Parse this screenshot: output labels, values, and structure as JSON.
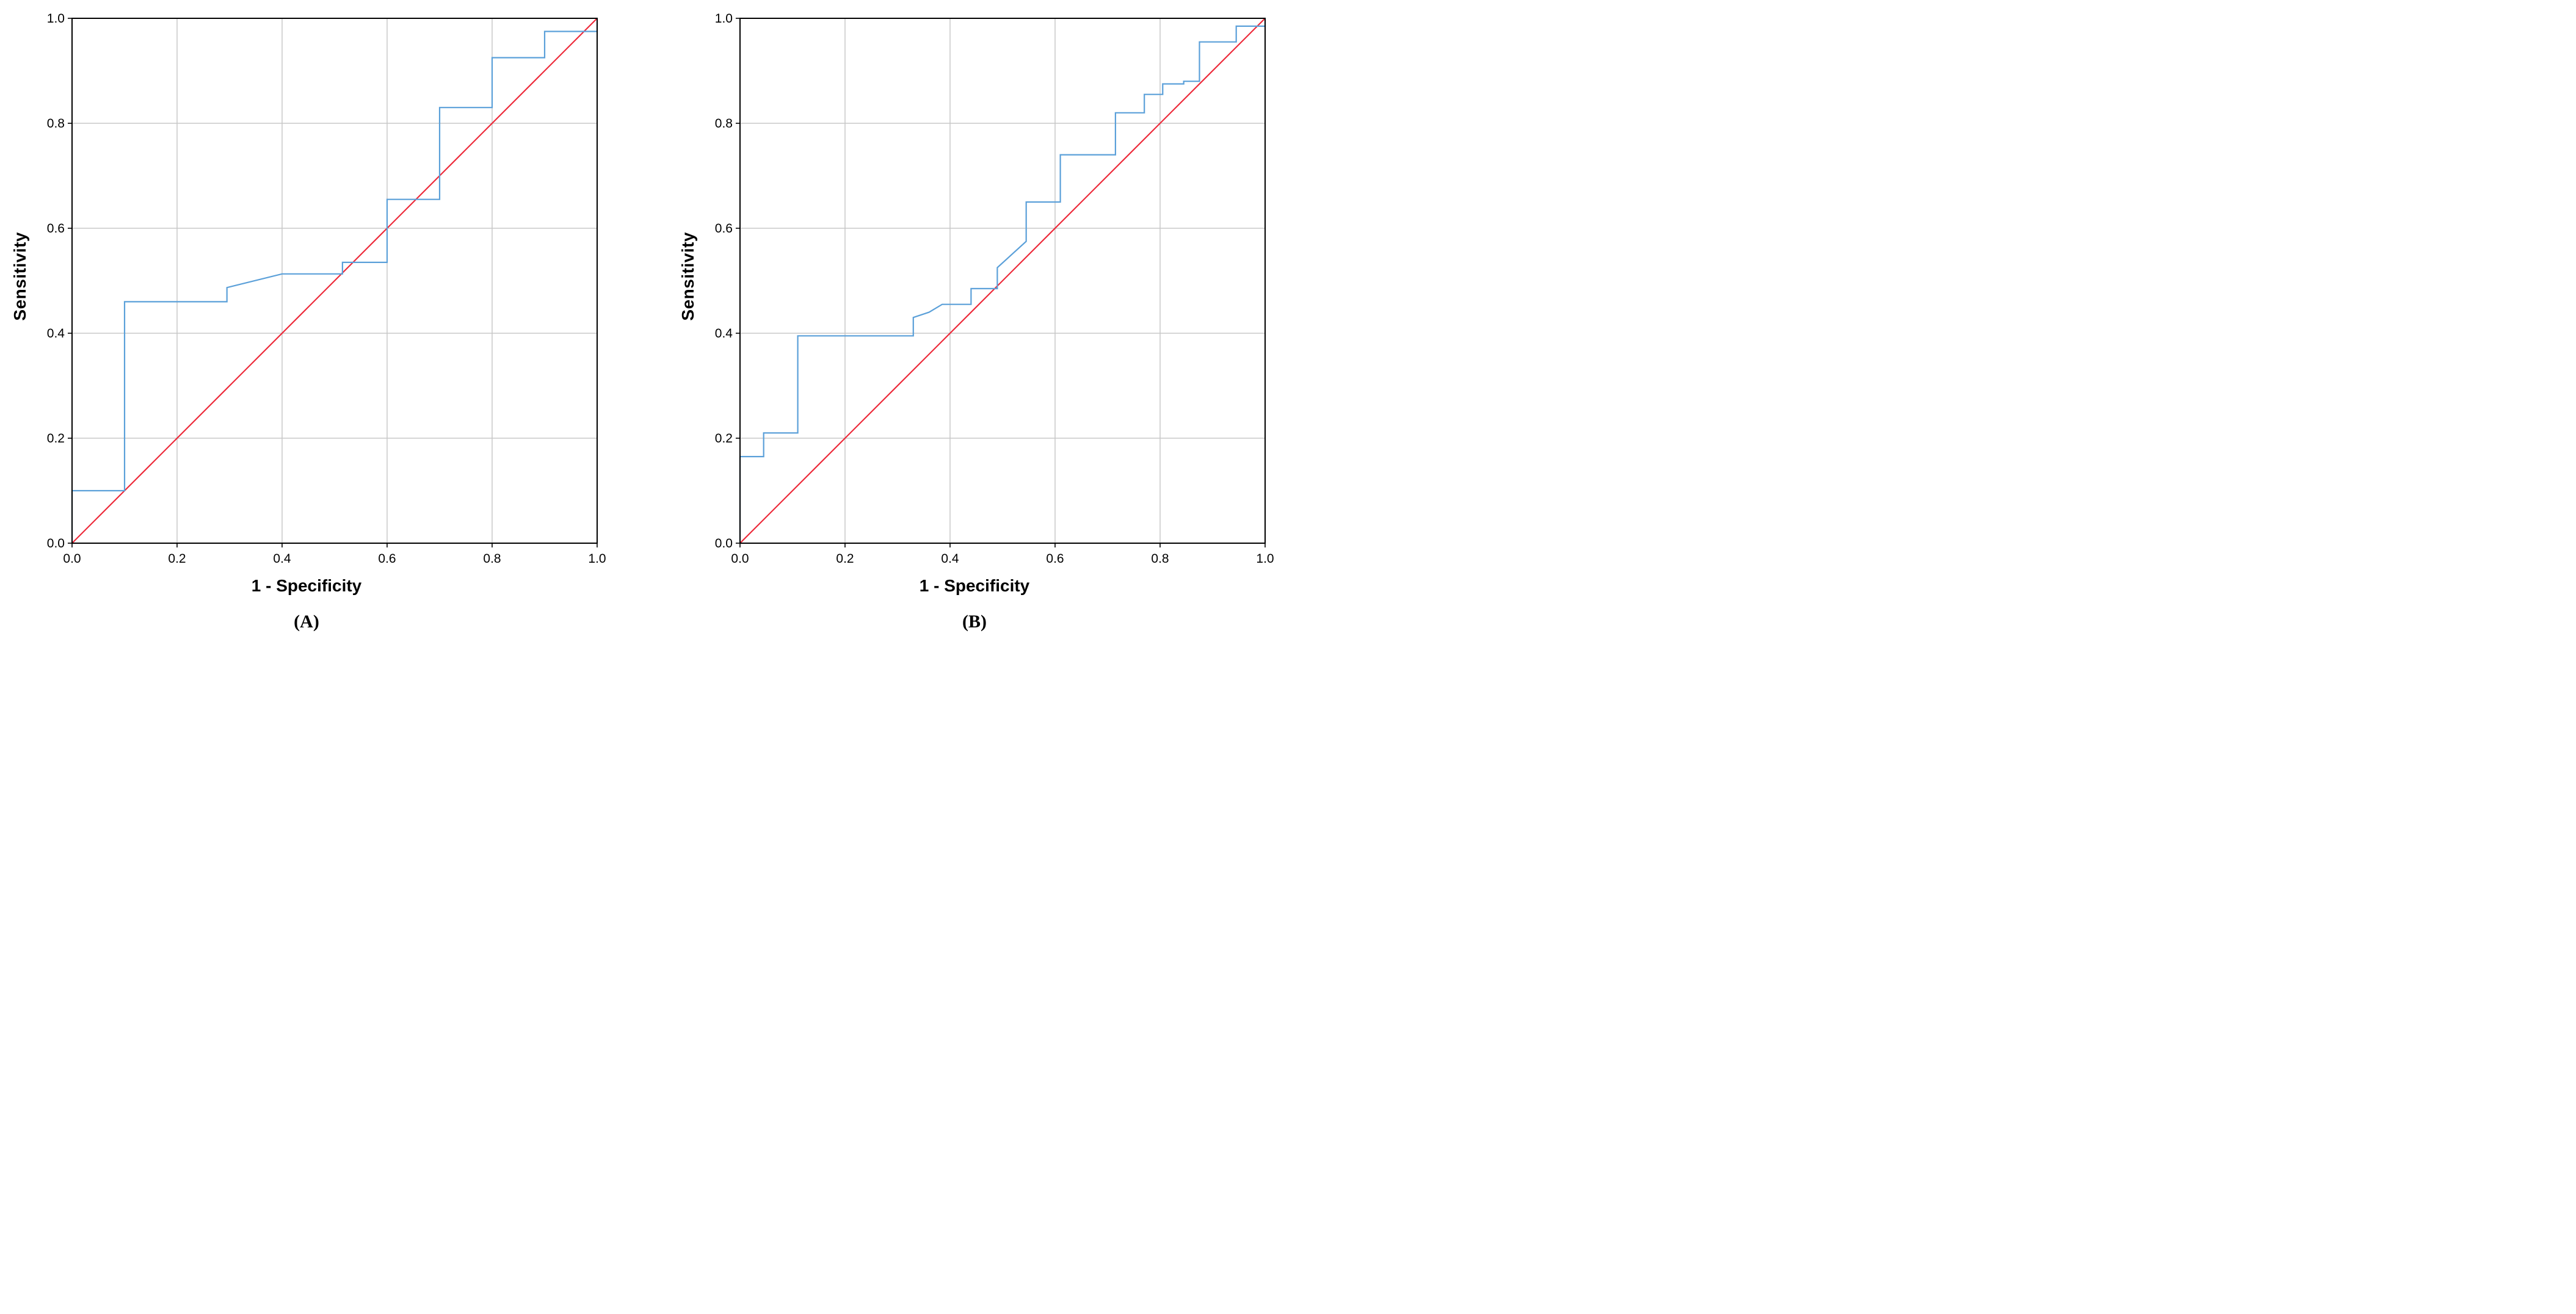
{
  "figure": {
    "background": "#ffffff",
    "grid_color": "#c8c8c8",
    "border_color": "#000000",
    "panels": [
      {
        "caption": "(A)",
        "x_label": "1 - Specificity",
        "y_label": "Sensitivity"
      },
      {
        "caption": "(B)",
        "x_label": "1 - Specificity",
        "y_label": "Sensitivity"
      }
    ]
  },
  "chart_data": [
    {
      "type": "line",
      "title": "",
      "xlabel": "1 - Specificity",
      "ylabel": "Sensitivity",
      "xlim": [
        0,
        1
      ],
      "ylim": [
        0,
        1
      ],
      "grid": true,
      "legend": "none",
      "x_ticks": [
        0,
        0.2,
        0.4,
        0.6,
        0.8,
        1.0
      ],
      "y_ticks": [
        0,
        0.2,
        0.4,
        0.6,
        0.8,
        1.0
      ],
      "x_tick_labels": [
        "0.0",
        "0.2",
        "0.4",
        "0.6",
        "0.8",
        "1.0"
      ],
      "y_tick_labels": [
        "0.0",
        "0.2",
        "0.4",
        "0.6",
        "0.8",
        "1.0"
      ],
      "series": [
        {
          "name": "roc-curve",
          "color": "#5ba0d9",
          "width": 2.2,
          "points": [
            [
              0,
              0
            ],
            [
              0,
              0.1
            ],
            [
              0.1,
              0.1
            ],
            [
              0.1,
              0.46
            ],
            [
              0.295,
              0.46
            ],
            [
              0.295,
              0.487
            ],
            [
              0.4,
              0.513
            ],
            [
              0.515,
              0.513
            ],
            [
              0.515,
              0.535
            ],
            [
              0.6,
              0.535
            ],
            [
              0.6,
              0.655
            ],
            [
              0.7,
              0.655
            ],
            [
              0.7,
              0.83
            ],
            [
              0.8,
              0.83
            ],
            [
              0.8,
              0.925
            ],
            [
              0.9,
              0.925
            ],
            [
              0.9,
              0.975
            ],
            [
              1,
              0.975
            ],
            [
              1,
              1
            ]
          ]
        },
        {
          "name": "reference-line",
          "color": "#ed2939",
          "width": 2.2,
          "points": [
            [
              0,
              0
            ],
            [
              1,
              1
            ]
          ]
        }
      ]
    },
    {
      "type": "line",
      "title": "",
      "xlabel": "1 - Specificity",
      "ylabel": "Sensitivity",
      "xlim": [
        0,
        1
      ],
      "ylim": [
        0,
        1
      ],
      "grid": true,
      "legend": "none",
      "x_ticks": [
        0,
        0.2,
        0.4,
        0.6,
        0.8,
        1.0
      ],
      "y_ticks": [
        0,
        0.2,
        0.4,
        0.6,
        0.8,
        1.0
      ],
      "x_tick_labels": [
        "0.0",
        "0.2",
        "0.4",
        "0.6",
        "0.8",
        "1.0"
      ],
      "y_tick_labels": [
        "0.0",
        "0.2",
        "0.4",
        "0.6",
        "0.8",
        "1.0"
      ],
      "series": [
        {
          "name": "roc-curve",
          "color": "#5ba0d9",
          "width": 2.2,
          "points": [
            [
              0,
              0
            ],
            [
              0,
              0.165
            ],
            [
              0.045,
              0.165
            ],
            [
              0.045,
              0.21
            ],
            [
              0.11,
              0.21
            ],
            [
              0.11,
              0.395
            ],
            [
              0.33,
              0.395
            ],
            [
              0.33,
              0.43
            ],
            [
              0.36,
              0.44
            ],
            [
              0.385,
              0.455
            ],
            [
              0.44,
              0.455
            ],
            [
              0.44,
              0.485
            ],
            [
              0.49,
              0.485
            ],
            [
              0.49,
              0.525
            ],
            [
              0.545,
              0.575
            ],
            [
              0.545,
              0.65
            ],
            [
              0.61,
              0.65
            ],
            [
              0.61,
              0.74
            ],
            [
              0.715,
              0.74
            ],
            [
              0.715,
              0.82
            ],
            [
              0.77,
              0.82
            ],
            [
              0.77,
              0.855
            ],
            [
              0.805,
              0.855
            ],
            [
              0.805,
              0.875
            ],
            [
              0.845,
              0.875
            ],
            [
              0.845,
              0.88
            ],
            [
              0.875,
              0.88
            ],
            [
              0.875,
              0.955
            ],
            [
              0.945,
              0.955
            ],
            [
              0.945,
              0.985
            ],
            [
              1,
              0.985
            ],
            [
              1,
              1
            ]
          ]
        },
        {
          "name": "reference-line",
          "color": "#ed2939",
          "width": 2.2,
          "points": [
            [
              0,
              0
            ],
            [
              1,
              1
            ]
          ]
        }
      ]
    }
  ]
}
